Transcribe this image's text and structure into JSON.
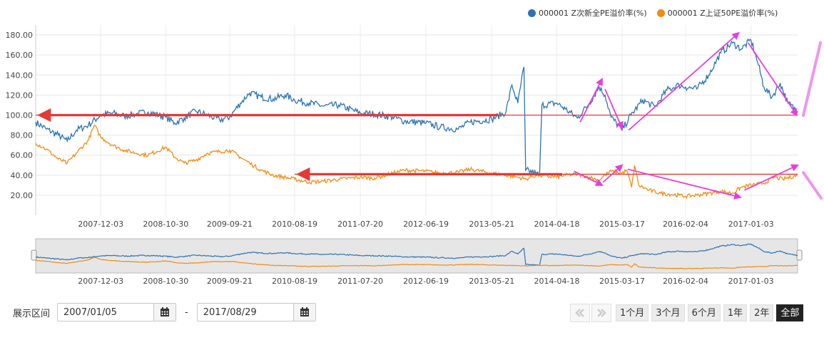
{
  "legend": [
    {
      "label": "000001 Z次新全PE溢价率(%)",
      "color": "#2c73b5"
    },
    {
      "label": "000001 Z上证50PE溢价率(%)",
      "color": "#f28b12"
    }
  ],
  "chart_data": {
    "type": "line",
    "title": "",
    "xlabel": "",
    "ylabel": "",
    "x_range": [
      "2007-01-05",
      "2017-08-29"
    ],
    "ylim": [
      0,
      190
    ],
    "y_ticks": [
      "20.00",
      "40.00",
      "60.00",
      "80.00",
      "100.00",
      "120.00",
      "140.00",
      "160.00",
      "180.00"
    ],
    "x_ticks": [
      "2007-12-03",
      "2008-10-30",
      "2009-09-21",
      "2010-08-19",
      "2011-07-20",
      "2012-06-19",
      "2013-05-21",
      "2014-04-18",
      "2015-03-17",
      "2016-02-04",
      "2017-01-03"
    ],
    "grid": true,
    "legend_position": "top-right",
    "series": [
      {
        "name": "000001 Z次新全PE溢价率(%)",
        "color": "#2c73b5",
        "points": [
          [
            "2007-01-05",
            93
          ],
          [
            "2007-03-01",
            86
          ],
          [
            "2007-05-01",
            80
          ],
          [
            "2007-06-15",
            74
          ],
          [
            "2007-08-01",
            85
          ],
          [
            "2007-10-01",
            90
          ],
          [
            "2007-12-03",
            100
          ],
          [
            "2008-02-01",
            102
          ],
          [
            "2008-04-01",
            99
          ],
          [
            "2008-06-01",
            101
          ],
          [
            "2008-08-01",
            103
          ],
          [
            "2008-10-30",
            98
          ],
          [
            "2008-12-15",
            92
          ],
          [
            "2009-02-01",
            97
          ],
          [
            "2009-04-01",
            104
          ],
          [
            "2009-06-01",
            100
          ],
          [
            "2009-08-01",
            95
          ],
          [
            "2009-09-21",
            98
          ],
          [
            "2009-11-15",
            112
          ],
          [
            "2010-01-01",
            122
          ],
          [
            "2010-03-01",
            118
          ],
          [
            "2010-05-01",
            116
          ],
          [
            "2010-07-01",
            120
          ],
          [
            "2010-08-19",
            115
          ],
          [
            "2010-11-01",
            112
          ],
          [
            "2011-01-15",
            109
          ],
          [
            "2011-04-01",
            110
          ],
          [
            "2011-07-20",
            102
          ],
          [
            "2011-10-01",
            101
          ],
          [
            "2012-01-01",
            98
          ],
          [
            "2012-03-01",
            94
          ],
          [
            "2012-06-19",
            92
          ],
          [
            "2012-09-01",
            88
          ],
          [
            "2012-12-01",
            86
          ],
          [
            "2013-02-01",
            93
          ],
          [
            "2013-05-21",
            96
          ],
          [
            "2013-08-01",
            103
          ],
          [
            "2013-09-01",
            130
          ],
          [
            "2013-10-01",
            112
          ],
          [
            "2013-11-01",
            148
          ],
          [
            "2013-11-10",
            45
          ],
          [
            "2014-01-01",
            42
          ],
          [
            "2014-01-20",
            40
          ],
          [
            "2014-02-01",
            110
          ],
          [
            "2014-04-18",
            112
          ],
          [
            "2014-06-01",
            106
          ],
          [
            "2014-08-01",
            97
          ],
          [
            "2014-10-01",
            112
          ],
          [
            "2014-11-20",
            128
          ],
          [
            "2014-12-20",
            120
          ],
          [
            "2015-01-20",
            98
          ],
          [
            "2015-03-17",
            85
          ],
          [
            "2015-05-01",
            100
          ],
          [
            "2015-07-01",
            115
          ],
          [
            "2015-09-01",
            108
          ],
          [
            "2015-11-01",
            125
          ],
          [
            "2016-01-01",
            130
          ],
          [
            "2016-02-04",
            128
          ],
          [
            "2016-04-01",
            126
          ],
          [
            "2016-06-01",
            140
          ],
          [
            "2016-08-01",
            162
          ],
          [
            "2016-10-01",
            172
          ],
          [
            "2016-11-15",
            166
          ],
          [
            "2017-01-03",
            175
          ],
          [
            "2017-02-10",
            150
          ],
          [
            "2017-03-10",
            128
          ],
          [
            "2017-04-20",
            118
          ],
          [
            "2017-06-01",
            132
          ],
          [
            "2017-07-10",
            112
          ],
          [
            "2017-08-29",
            104
          ]
        ]
      },
      {
        "name": "000001 Z上证50PE溢价率(%)",
        "color": "#f28b12",
        "points": [
          [
            "2007-01-05",
            72
          ],
          [
            "2007-03-01",
            66
          ],
          [
            "2007-05-01",
            56
          ],
          [
            "2007-06-15",
            52
          ],
          [
            "2007-08-01",
            62
          ],
          [
            "2007-10-01",
            75
          ],
          [
            "2007-11-01",
            90
          ],
          [
            "2007-12-03",
            78
          ],
          [
            "2008-02-01",
            70
          ],
          [
            "2008-04-01",
            65
          ],
          [
            "2008-06-01",
            62
          ],
          [
            "2008-08-01",
            60
          ],
          [
            "2008-10-30",
            68
          ],
          [
            "2008-12-15",
            58
          ],
          [
            "2009-02-01",
            52
          ],
          [
            "2009-04-01",
            55
          ],
          [
            "2009-06-01",
            62
          ],
          [
            "2009-09-21",
            65
          ],
          [
            "2009-11-15",
            58
          ],
          [
            "2010-01-01",
            52
          ],
          [
            "2010-03-01",
            45
          ],
          [
            "2010-05-01",
            40
          ],
          [
            "2010-08-19",
            36
          ],
          [
            "2010-11-01",
            33
          ],
          [
            "2011-01-15",
            34
          ],
          [
            "2011-04-01",
            36
          ],
          [
            "2011-07-20",
            38
          ],
          [
            "2011-10-01",
            37
          ],
          [
            "2012-01-01",
            42
          ],
          [
            "2012-03-01",
            45
          ],
          [
            "2012-06-19",
            44
          ],
          [
            "2012-09-01",
            42
          ],
          [
            "2012-12-01",
            43
          ],
          [
            "2013-02-01",
            46
          ],
          [
            "2013-05-21",
            42
          ],
          [
            "2013-08-01",
            40
          ],
          [
            "2013-10-01",
            38
          ],
          [
            "2013-11-10",
            36
          ],
          [
            "2014-01-01",
            40
          ],
          [
            "2014-04-18",
            38
          ],
          [
            "2014-06-01",
            40
          ],
          [
            "2014-08-01",
            41
          ],
          [
            "2014-10-01",
            38
          ],
          [
            "2014-11-20",
            35
          ],
          [
            "2014-12-20",
            40
          ],
          [
            "2015-01-20",
            44
          ],
          [
            "2015-03-17",
            42
          ],
          [
            "2015-04-10",
            45
          ],
          [
            "2015-05-05",
            28
          ],
          [
            "2015-05-20",
            50
          ],
          [
            "2015-06-10",
            30
          ],
          [
            "2015-08-01",
            25
          ],
          [
            "2015-10-01",
            22
          ],
          [
            "2016-01-01",
            20
          ],
          [
            "2016-02-04",
            19
          ],
          [
            "2016-04-01",
            20
          ],
          [
            "2016-06-01",
            22
          ],
          [
            "2016-08-01",
            24
          ],
          [
            "2016-10-01",
            22
          ],
          [
            "2016-11-15",
            28
          ],
          [
            "2017-01-03",
            30
          ],
          [
            "2017-03-10",
            32
          ],
          [
            "2017-05-01",
            38
          ],
          [
            "2017-06-15",
            36
          ],
          [
            "2017-08-29",
            40
          ]
        ]
      }
    ],
    "annotations": [
      {
        "type": "hline",
        "series": "blue",
        "y": 100,
        "from": "2007-01-05",
        "to": "2017-08-29",
        "color": "#e53935"
      },
      {
        "type": "hline",
        "series": "orange",
        "y": 41,
        "from": "2010-08-19",
        "to": "2017-08-29",
        "color": "#e53935"
      },
      {
        "type": "arrow",
        "from": [
          "2014-08-15",
          93
        ],
        "to": [
          "2014-12-05",
          136
        ],
        "color": "#e83de0"
      },
      {
        "type": "arrow",
        "from": [
          "2014-12-20",
          126
        ],
        "to": [
          "2015-03-17",
          87
        ],
        "color": "#e83de0"
      },
      {
        "type": "arrow",
        "from": [
          "2015-04-20",
          85
        ],
        "to": [
          "2016-11-01",
          182
        ],
        "color": "#e83de0"
      },
      {
        "type": "arrow",
        "from": [
          "2016-12-20",
          172
        ],
        "to": [
          "2017-08-25",
          100
        ],
        "color": "#e83de0"
      },
      {
        "type": "arrow",
        "from": [
          "2014-07-15",
          44
        ],
        "to": [
          "2014-12-05",
          30
        ],
        "color": "#e83de0"
      },
      {
        "type": "arrow",
        "from": [
          "2014-12-10",
          33
        ],
        "to": [
          "2015-03-17",
          50
        ],
        "color": "#e83de0"
      },
      {
        "type": "arrow",
        "from": [
          "2015-04-15",
          46
        ],
        "to": [
          "2016-11-10",
          18
        ],
        "color": "#e83de0"
      },
      {
        "type": "arrow",
        "from": [
          "2016-12-01",
          25
        ],
        "to": [
          "2017-08-29",
          50
        ],
        "color": "#e83de0"
      }
    ]
  },
  "controls": {
    "range_label": "展示区间",
    "start_date": "2007/01/05",
    "separator": "-",
    "end_date": "2017/08/29",
    "periods": [
      "1个月",
      "3个月",
      "6个月",
      "1年",
      "2年",
      "全部"
    ],
    "active_period": "全部"
  },
  "icons": {
    "calendar": "calendar-icon",
    "prev": "double-left-icon",
    "next": "double-right-icon"
  }
}
